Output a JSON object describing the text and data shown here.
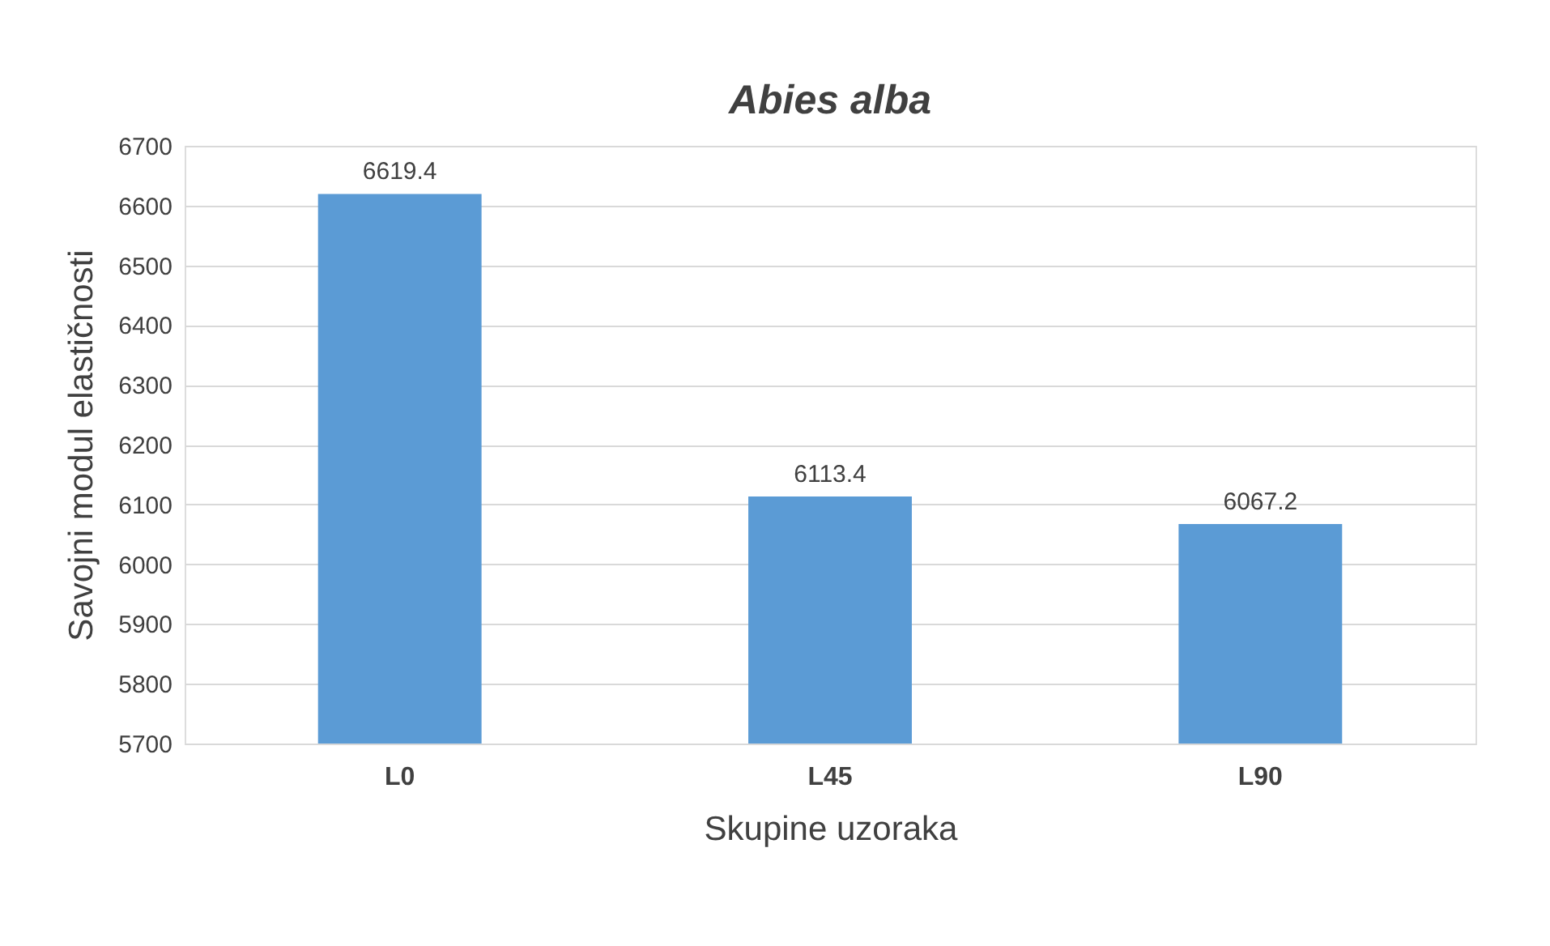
{
  "chart_data": {
    "type": "bar",
    "title": "Abies alba",
    "xlabel": "Skupine uzoraka",
    "ylabel": "Savojni modul elastičnosti",
    "categories": [
      "L0",
      "L45",
      "L90"
    ],
    "values": [
      6619.4,
      6113.4,
      6067.2
    ],
    "color": "#5b9bd5",
    "ylim": [
      5700,
      6700
    ],
    "yticks": [
      5700,
      5800,
      5900,
      6000,
      6100,
      6200,
      6300,
      6400,
      6500,
      6600,
      6700
    ],
    "grid": "y",
    "data_labels": true
  }
}
